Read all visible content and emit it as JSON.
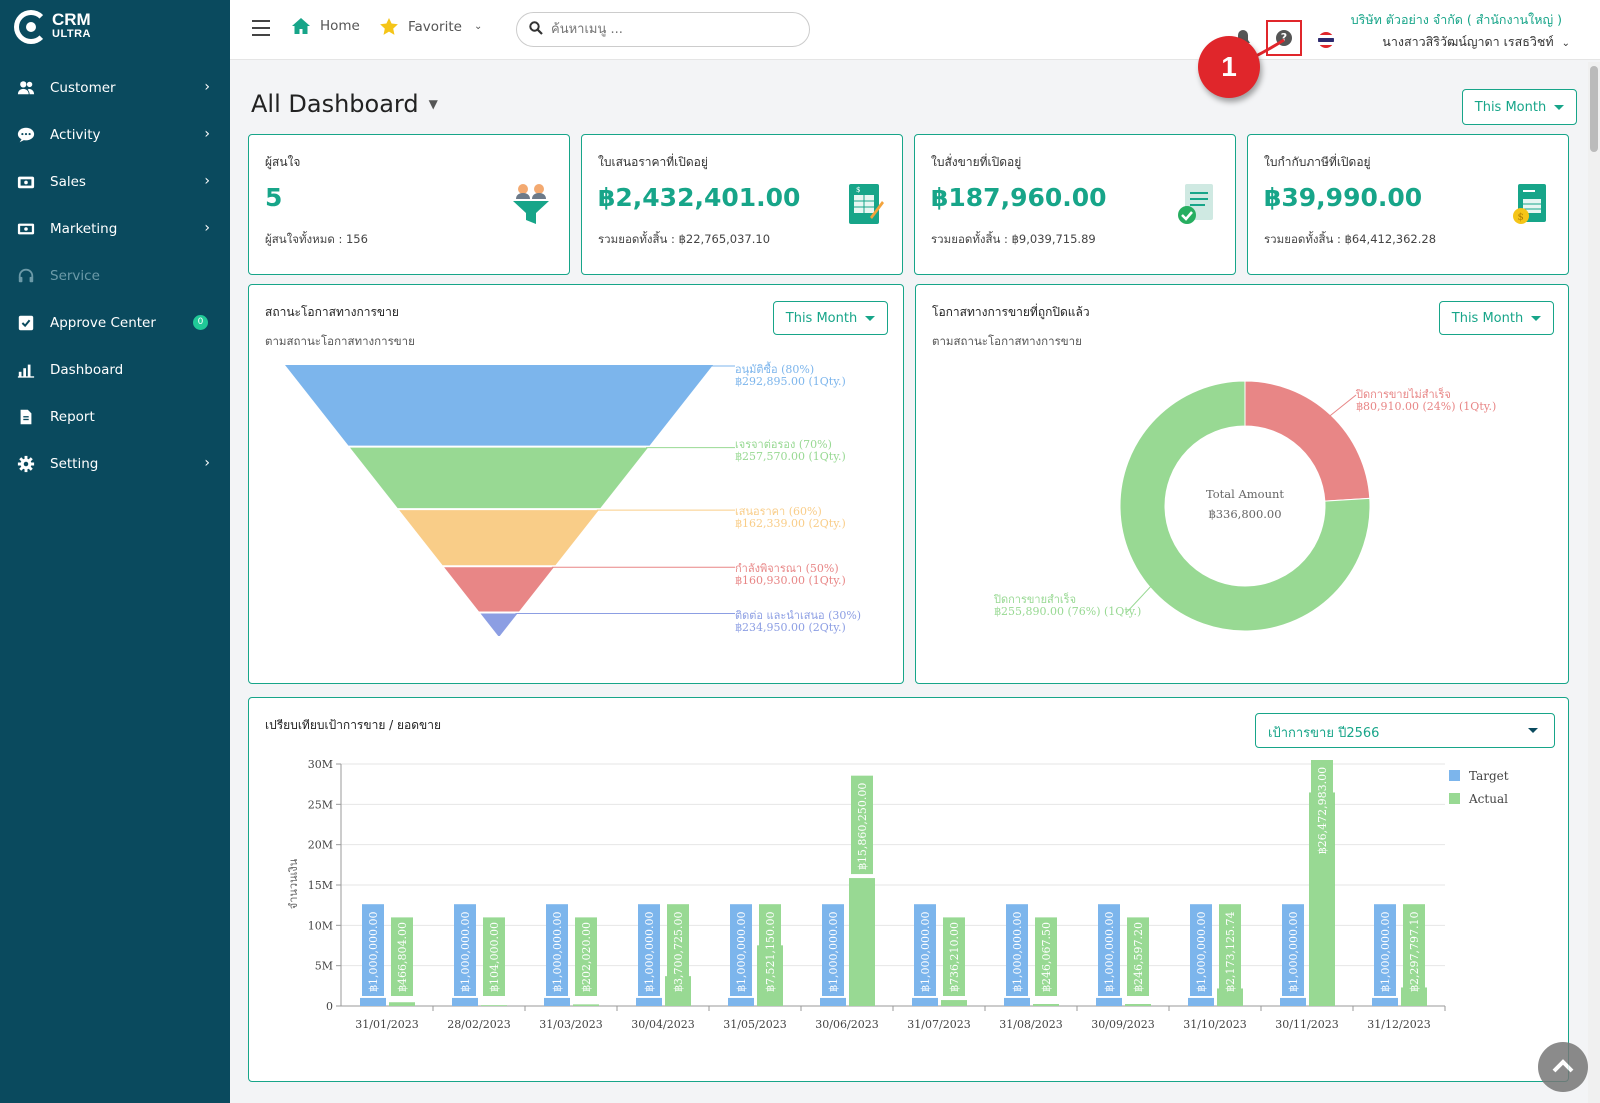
{
  "sidebar": {
    "logo_main": "CRM",
    "logo_sub": "ULTRA",
    "items": [
      {
        "label": "Customer",
        "icon": "users-icon"
      },
      {
        "label": "Activity",
        "icon": "chat-icon"
      },
      {
        "label": "Sales",
        "icon": "cash-register-icon"
      },
      {
        "label": "Marketing",
        "icon": "money-icon"
      },
      {
        "label": "Service",
        "icon": "headset-icon"
      },
      {
        "label": "Approve Center",
        "icon": "check-square-icon",
        "badge": "0"
      },
      {
        "label": "Dashboard",
        "icon": "bar-chart-icon"
      },
      {
        "label": "Report",
        "icon": "file-icon"
      },
      {
        "label": "Setting",
        "icon": "gear-icon"
      }
    ]
  },
  "topbar": {
    "home": "Home",
    "favorite": "Favorite",
    "search_placeholder": "ค้นหาเมนู ...",
    "company": "บริษัท ตัวอย่าง จำกัด ( สำนักงานใหญ่ )",
    "user": "นางสาวสิริวัฒน์ญาดา เรสธวิชท์",
    "callout": "1"
  },
  "page": {
    "title": "All Dashboard",
    "period": "This Month"
  },
  "kpis": [
    {
      "label": "ผู้สนใจ",
      "value": "5",
      "sub": "ผู้สนใจทั้งหมด : 156",
      "icon": "funnel-people-icon"
    },
    {
      "label": "ใบเสนอราคาที่เปิดอยู่",
      "value": "฿2,432,401.00",
      "sub": "รวมยอดทั้งสิ้น : ฿22,765,037.10",
      "icon": "quotation-doc-icon"
    },
    {
      "label": "ใบสั่งขายที่เปิดอยู่",
      "value": "฿187,960.00",
      "sub": "รวมยอดทั้งสิ้น : ฿9,039,715.89",
      "icon": "sales-order-check-icon"
    },
    {
      "label": "ใบกำกับภาษีที่เปิดอยู่",
      "value": "฿39,990.00",
      "sub": "รวมยอดทั้งสิ้น : ฿64,412,362.28",
      "icon": "invoice-coin-icon"
    }
  ],
  "funnel_panel": {
    "title": "สถานะโอกาสทางการขาย",
    "subtitle": "ตามสถานะโอกาสทางการขาย",
    "filter": "This Month"
  },
  "donut_panel": {
    "title": "โอกาสทางการขายที่ถูกปิดแล้ว",
    "subtitle": "ตามสถานะโอกาสทางการขาย",
    "filter": "This Month"
  },
  "bar_panel": {
    "title": "เปรียบเทียบเป้าการขาย / ยอดขาย",
    "filter": "เป้าการขาย ปี2566"
  },
  "chart_data": [
    {
      "type": "funnel",
      "stages": [
        {
          "name": "อนุมัติซื้อ (80%)",
          "detail": "฿292,895.00 (1Qty.)",
          "value": 292895,
          "color": "#7cb5ec"
        },
        {
          "name": "เจรจาต่อรอง (70%)",
          "detail": "฿257,570.00 (1Qty.)",
          "value": 257570,
          "color": "#98d993"
        },
        {
          "name": "เสนอราคา (60%)",
          "detail": "฿162,339.00 (2Qty.)",
          "value": 162339,
          "color": "#f9cd88"
        },
        {
          "name": "กำลังพิจารณา (50%)",
          "detail": "฿160,930.00 (1Qty.)",
          "value": 160930,
          "color": "#e88686"
        },
        {
          "name": "ติดต่อ และนำเสนอ (30%)",
          "detail": "฿234,950.00 (2Qty.)",
          "value": 234950,
          "color": "#8c9ee3"
        }
      ]
    },
    {
      "type": "pie",
      "center_label": "Total Amount",
      "center_value": "฿336,800.00",
      "slices": [
        {
          "name": "ปิดการขายไม่สำเร็จ",
          "detail": "฿80,910.00 (24%) (1Qty.)",
          "value": 80910,
          "color": "#e88686"
        },
        {
          "name": "ปิดการขายสำเร็จ",
          "detail": "฿255,890.00 (76%) (1Qty.)",
          "value": 255890,
          "color": "#98d993"
        }
      ]
    },
    {
      "type": "bar",
      "ylabel": "จำนวนเงิน",
      "ylim": [
        0,
        30000000
      ],
      "yticks": [
        "0",
        "5M",
        "10M",
        "15M",
        "20M",
        "25M",
        "30M"
      ],
      "categories": [
        "31/01/2023",
        "28/02/2023",
        "31/03/2023",
        "30/04/2023",
        "31/05/2023",
        "30/06/2023",
        "31/07/2023",
        "31/08/2023",
        "30/09/2023",
        "31/10/2023",
        "30/11/2023",
        "31/12/2023"
      ],
      "series": [
        {
          "name": "Target",
          "color": "#7cb5ec",
          "values": [
            1000000,
            1000000,
            1000000,
            1000000,
            1000000,
            1000000,
            1000000,
            1000000,
            1000000,
            1000000,
            1000000,
            1000000
          ],
          "labels": [
            "฿1,000,000.00",
            "฿1,000,000.00",
            "฿1,000,000.00",
            "฿1,000,000.00",
            "฿1,000,000.00",
            "฿1,000,000.00",
            "฿1,000,000.00",
            "฿1,000,000.00",
            "฿1,000,000.00",
            "฿1,000,000.00",
            "฿1,000,000.00",
            "฿1,000,000.00"
          ]
        },
        {
          "name": "Actual",
          "color": "#98d993",
          "values": [
            466804,
            104000,
            202020,
            3700725,
            7521150,
            15860250,
            736210,
            246067.5,
            246597.2,
            2173125.74,
            26472983,
            2297797.1
          ],
          "labels": [
            "฿466,804.00",
            "฿104,000.00",
            "฿202,020.00",
            "฿3,700,725.00",
            "฿7,521,150.00",
            "฿15,860,250.00",
            "฿736,210.00",
            "฿246,067.50",
            "฿246,597.20",
            "฿2,173,125.74",
            "฿26,472,983.00",
            "฿2,297,797.10"
          ]
        }
      ]
    }
  ]
}
